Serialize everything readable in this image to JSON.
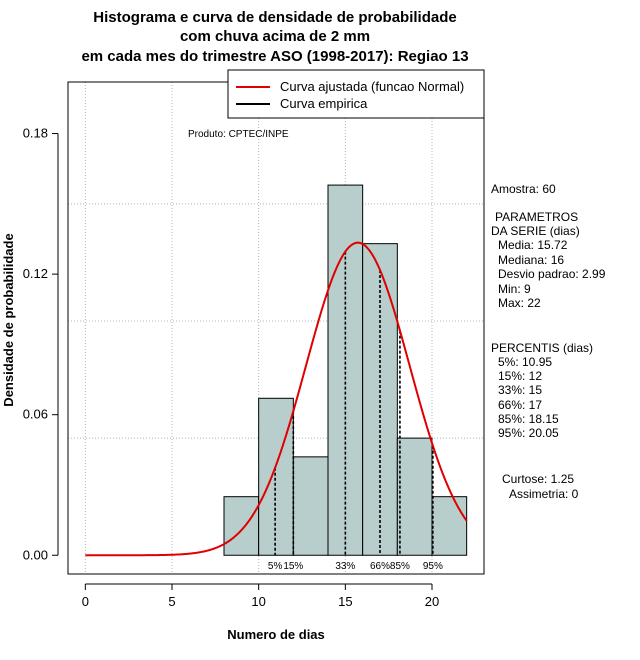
{
  "chart_data": {
    "type": "histogram",
    "title": [
      "Histograma e curva de densidade de probabilidade",
      "com chuva acima de 2 mm",
      "em cada mes do trimestre ASO (1998-2017): Regiao 13"
    ],
    "xlabel": "Numero de dias",
    "ylabel": "Densidade de probabilidade",
    "xlim": [
      -1,
      23
    ],
    "ylim": [
      -0.008,
      0.202
    ],
    "xticks": [
      0,
      5,
      10,
      15,
      20
    ],
    "yticks": [
      0.0,
      0.06,
      0.12,
      0.18
    ],
    "ytick_labels": [
      "0.00",
      "0.06",
      "0.12",
      "0.18"
    ],
    "grid": true,
    "bins": [
      {
        "x0": 8,
        "x1": 10,
        "density": 0.025
      },
      {
        "x0": 10,
        "x1": 12,
        "density": 0.067
      },
      {
        "x0": 12,
        "x1": 14,
        "density": 0.042
      },
      {
        "x0": 14,
        "x1": 16,
        "density": 0.158
      },
      {
        "x0": 16,
        "x1": 18,
        "density": 0.133
      },
      {
        "x0": 18,
        "x1": 20,
        "density": 0.05
      },
      {
        "x0": 20,
        "x1": 22,
        "density": 0.025
      }
    ],
    "bar_color": "#b7cecd",
    "normal_curve": {
      "mean": 15.72,
      "sd": 2.99,
      "from": 0,
      "to": 22,
      "color": "#e00000"
    },
    "legend": {
      "position": "top-right",
      "entries": [
        {
          "label": "Curva ajustada (funcao Normal)",
          "color": "#e00000"
        },
        {
          "label": "Curva empirica",
          "color": "#000000"
        }
      ]
    },
    "annotation": "Produto: CPTEC/INPE",
    "percentile_lines": [
      {
        "label": "5%",
        "x": 10.95
      },
      {
        "label": "15%",
        "x": 12
      },
      {
        "label": "33%",
        "x": 15
      },
      {
        "label": "66%",
        "x": 17
      },
      {
        "label": "85%",
        "x": 18.15
      },
      {
        "label": "95%",
        "x": 20.05
      }
    ]
  },
  "stats": {
    "sample": "Amostra: 60",
    "params_title_1": "PARAMETROS",
    "params_title_2": "DA SERIE (dias)",
    "media": "Media: 15.72",
    "mediana": "Mediana: 16",
    "desvio": "Desvio padrao: 2.99",
    "min": "Min: 9",
    "max": "Max: 22",
    "percentis_title": "PERCENTIS (dias)",
    "p5": "5%: 10.95",
    "p15": "15%: 12",
    "p33": "33%: 15",
    "p66": "66%: 17",
    "p85": "85%: 18.15",
    "p95": "95%: 20.05",
    "curtose": "Curtose: 1.25",
    "assimetria": "Assimetria: 0"
  }
}
